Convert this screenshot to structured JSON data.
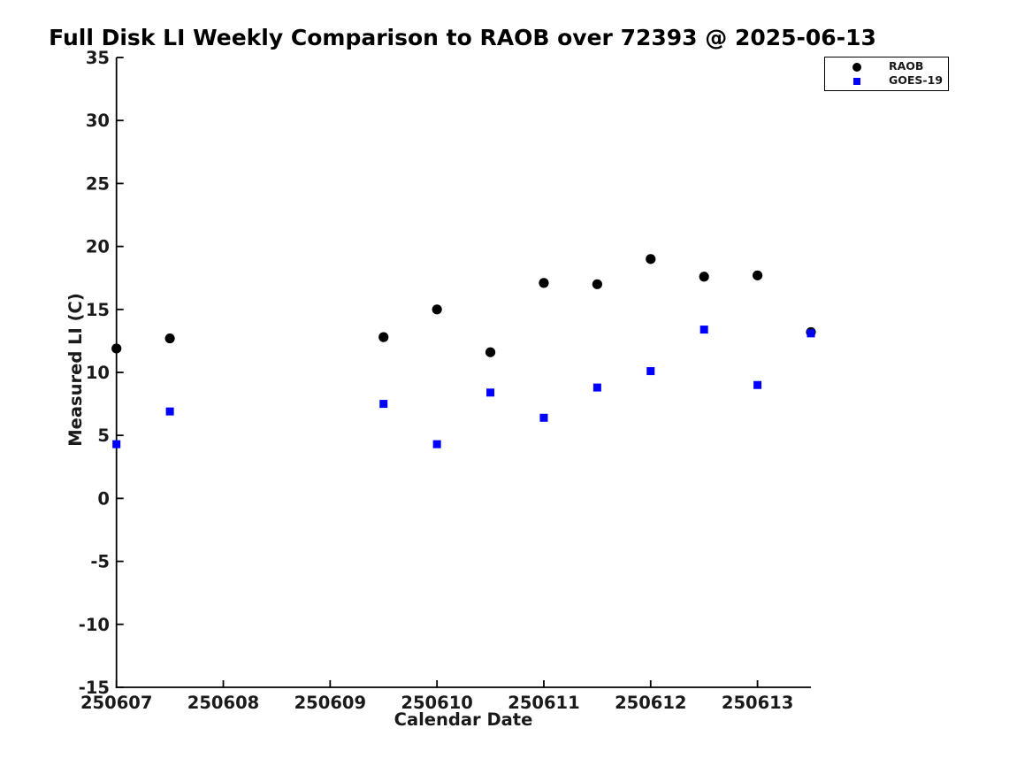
{
  "chart_data": {
    "type": "scatter",
    "title": "Full Disk LI Weekly Comparison to RAOB over 72393 @ 2025-06-13",
    "xlabel": "Calendar Date",
    "ylabel": "Measured LI (C)",
    "xlim": [
      250607,
      250613.5
    ],
    "ylim": [
      -15,
      35
    ],
    "x_ticks": [
      "250607",
      "250608",
      "250609",
      "250610",
      "250611",
      "250612",
      "250613"
    ],
    "y_ticks": [
      "35",
      "30",
      "25",
      "20",
      "15",
      "10",
      "5",
      "0",
      "-5",
      "-10",
      "-15"
    ],
    "grid": false,
    "legend_position": "top-right",
    "axis_color": "#000000",
    "series": [
      {
        "name": "RAOB",
        "marker": "circle",
        "color": "#000000",
        "points": [
          [
            250607.0,
            11.9
          ],
          [
            250607.5,
            12.7
          ],
          [
            250609.5,
            12.8
          ],
          [
            250610.0,
            15.0
          ],
          [
            250610.5,
            11.6
          ],
          [
            250611.0,
            17.1
          ],
          [
            250611.5,
            17.0
          ],
          [
            250612.0,
            19.0
          ],
          [
            250612.5,
            17.6
          ],
          [
            250613.0,
            17.7
          ],
          [
            250613.5,
            13.2
          ]
        ]
      },
      {
        "name": "GOES-19",
        "marker": "square",
        "color": "#0000ff",
        "points": [
          [
            250607.0,
            4.3
          ],
          [
            250607.5,
            6.9
          ],
          [
            250609.5,
            7.5
          ],
          [
            250610.0,
            4.3
          ],
          [
            250610.5,
            8.4
          ],
          [
            250611.0,
            6.4
          ],
          [
            250611.5,
            8.8
          ],
          [
            250612.0,
            10.1
          ],
          [
            250612.5,
            13.4
          ],
          [
            250613.0,
            9.0
          ],
          [
            250613.5,
            13.1
          ]
        ]
      }
    ]
  }
}
